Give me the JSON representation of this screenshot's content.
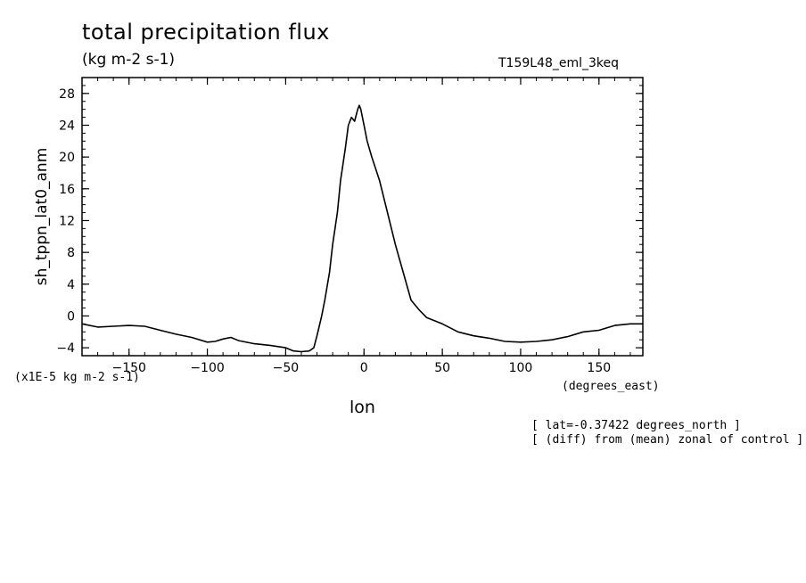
{
  "header": {
    "title": "total precipitation flux",
    "units": "(kg m-2 s-1)",
    "run_id": "T159L48_eml_3keq"
  },
  "footnotes": {
    "scale_factor": "(x1E-5 kg m-2 s-1)",
    "x_units": "(degrees_east)",
    "lat_note": "[ lat=-0.37422 degrees_north ]",
    "diff_note": "[ (diff) from (mean) zonal of control ]"
  },
  "chart_data": {
    "type": "line",
    "title": "total precipitation flux",
    "xlabel": "lon",
    "ylabel": "sh_tppn_lat0_anm",
    "xlim": [
      -180,
      178
    ],
    "ylim": [
      -5,
      30
    ],
    "xticks": [
      -150,
      -100,
      -50,
      0,
      50,
      100,
      150
    ],
    "yticks": [
      -4,
      0,
      4,
      8,
      12,
      16,
      20,
      24,
      28
    ],
    "grid": false,
    "line_color": "#000000",
    "x": [
      -180,
      -170,
      -160,
      -150,
      -140,
      -130,
      -120,
      -110,
      -100,
      -95,
      -90,
      -85,
      -80,
      -70,
      -60,
      -50,
      -45,
      -40,
      -35,
      -32,
      -30,
      -27,
      -25,
      -22,
      -20,
      -17,
      -15,
      -12,
      -10,
      -8,
      -6,
      -4,
      -3,
      -2,
      0,
      2,
      5,
      10,
      15,
      20,
      25,
      30,
      35,
      40,
      50,
      60,
      70,
      80,
      90,
      100,
      110,
      120,
      130,
      140,
      150,
      160,
      170,
      178
    ],
    "y": [
      -1.0,
      -1.4,
      -1.3,
      -1.2,
      -1.3,
      -1.8,
      -2.3,
      -2.7,
      -3.3,
      -3.2,
      -2.9,
      -2.7,
      -3.1,
      -3.5,
      -3.7,
      -4.0,
      -4.4,
      -4.5,
      -4.4,
      -4.0,
      -2.5,
      0.0,
      2.0,
      5.5,
      9.0,
      13.0,
      17.0,
      21.0,
      24.0,
      25.0,
      24.5,
      26.0,
      26.5,
      26.0,
      24.0,
      22.0,
      20.0,
      17.0,
      13.0,
      9.0,
      5.5,
      2.0,
      0.8,
      -0.2,
      -1.0,
      -2.0,
      -2.5,
      -2.8,
      -3.2,
      -3.3,
      -3.2,
      -3.0,
      -2.6,
      -2.0,
      -1.8,
      -1.2,
      -1.0,
      -1.0
    ]
  }
}
